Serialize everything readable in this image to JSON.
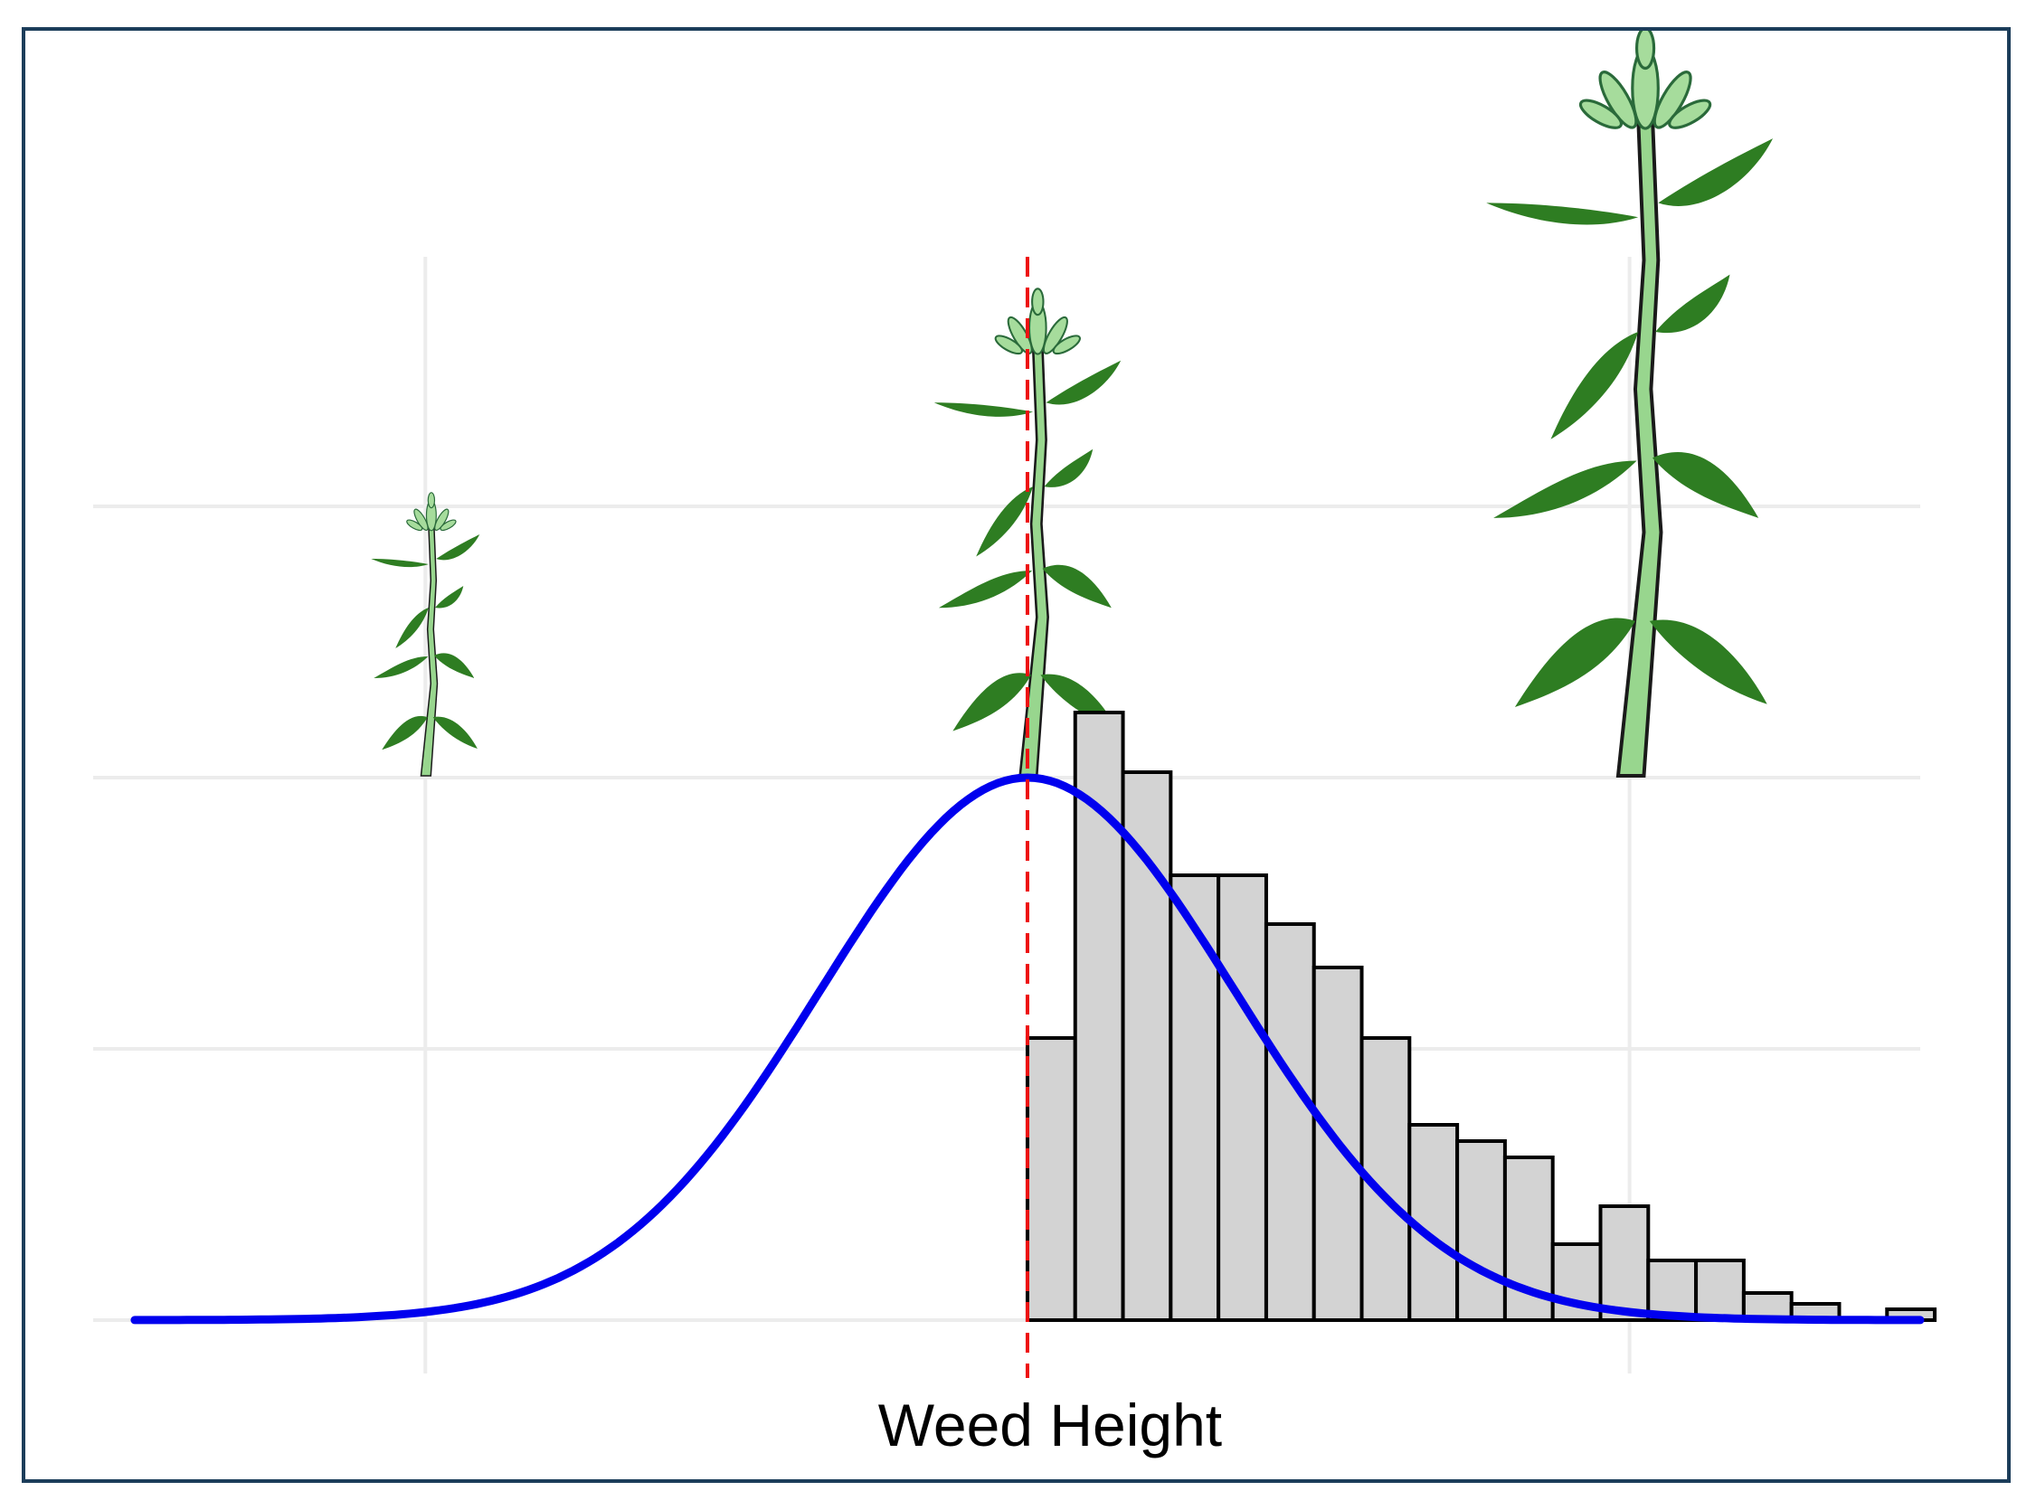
{
  "chart_data": {
    "type": "bar",
    "title": "",
    "xlabel": "Weed Height",
    "ylabel": "",
    "grid": true,
    "legend": "none",
    "xlim": [
      -4.5,
      4.3
    ],
    "ylim": [
      0,
      1.03
    ],
    "xgrid": [
      -2.9,
      2.9
    ],
    "bin_width": 0.23,
    "bins_start": 0.0,
    "histogram_values": [
      0.52,
      1.12,
      1.01,
      0.82,
      0.82,
      0.73,
      0.65,
      0.52,
      0.36,
      0.33,
      0.3,
      0.14,
      0.21,
      0.11,
      0.11,
      0.05,
      0.03,
      0.0,
      0.02
    ],
    "series": [
      {
        "type": "normal-curve",
        "mean": 0.0,
        "sd": 1.0,
        "peak": 1.0,
        "x_range": [
          -4.3,
          4.3
        ]
      }
    ],
    "reference_line": {
      "x": 0.0,
      "style": "dashed"
    },
    "illustrations": [
      {
        "icon": "small-weed-plant-icon",
        "at_x": -2.9,
        "height": 0.5
      },
      {
        "icon": "medium-weed-plant-icon",
        "at_x": 0.0,
        "height": 0.86
      },
      {
        "icon": "large-weed-plant-icon",
        "at_x": 2.9,
        "height": 1.32
      }
    ],
    "colors": {
      "curve": "#0000ee",
      "bars": "#d3d3d3",
      "bar_edge": "#000000",
      "reference_line": "#ee1111",
      "grid": "#ececec",
      "leaf": "#2e7d22",
      "stem": "#98d68e",
      "frame": "#1c3d5a"
    }
  }
}
